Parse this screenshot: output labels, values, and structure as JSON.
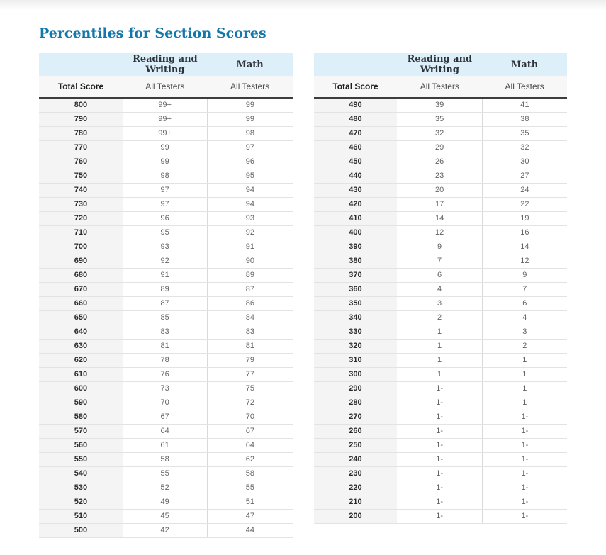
{
  "title": "Percentiles for Section Scores",
  "colors": {
    "title_blue": "#1478ab",
    "group_header_bg": "#ddeff9",
    "subheader_bg": "#f7f7f7",
    "score_column_bg": "#f4f4f4",
    "header_rule": "#3d3d3d",
    "row_divider": "#e3e3e3"
  },
  "tables": [
    {
      "group_headers": [
        "",
        "Reading and Writing",
        "Math"
      ],
      "column_headers": [
        "Total Score",
        "All Testers",
        "All Testers"
      ],
      "rows": [
        [
          "800",
          "99+",
          "99"
        ],
        [
          "790",
          "99+",
          "99"
        ],
        [
          "780",
          "99+",
          "98"
        ],
        [
          "770",
          "99",
          "97"
        ],
        [
          "760",
          "99",
          "96"
        ],
        [
          "750",
          "98",
          "95"
        ],
        [
          "740",
          "97",
          "94"
        ],
        [
          "730",
          "97",
          "94"
        ],
        [
          "720",
          "96",
          "93"
        ],
        [
          "710",
          "95",
          "92"
        ],
        [
          "700",
          "93",
          "91"
        ],
        [
          "690",
          "92",
          "90"
        ],
        [
          "680",
          "91",
          "89"
        ],
        [
          "670",
          "89",
          "87"
        ],
        [
          "660",
          "87",
          "86"
        ],
        [
          "650",
          "85",
          "84"
        ],
        [
          "640",
          "83",
          "83"
        ],
        [
          "630",
          "81",
          "81"
        ],
        [
          "620",
          "78",
          "79"
        ],
        [
          "610",
          "76",
          "77"
        ],
        [
          "600",
          "73",
          "75"
        ],
        [
          "590",
          "70",
          "72"
        ],
        [
          "580",
          "67",
          "70"
        ],
        [
          "570",
          "64",
          "67"
        ],
        [
          "560",
          "61",
          "64"
        ],
        [
          "550",
          "58",
          "62"
        ],
        [
          "540",
          "55",
          "58"
        ],
        [
          "530",
          "52",
          "55"
        ],
        [
          "520",
          "49",
          "51"
        ],
        [
          "510",
          "45",
          "47"
        ],
        [
          "500",
          "42",
          "44"
        ]
      ]
    },
    {
      "group_headers": [
        "",
        "Reading and Writing",
        "Math"
      ],
      "column_headers": [
        "Total Score",
        "All Testers",
        "All Testers"
      ],
      "rows": [
        [
          "490",
          "39",
          "41"
        ],
        [
          "480",
          "35",
          "38"
        ],
        [
          "470",
          "32",
          "35"
        ],
        [
          "460",
          "29",
          "32"
        ],
        [
          "450",
          "26",
          "30"
        ],
        [
          "440",
          "23",
          "27"
        ],
        [
          "430",
          "20",
          "24"
        ],
        [
          "420",
          "17",
          "22"
        ],
        [
          "410",
          "14",
          "19"
        ],
        [
          "400",
          "12",
          "16"
        ],
        [
          "390",
          "9",
          "14"
        ],
        [
          "380",
          "7",
          "12"
        ],
        [
          "370",
          "6",
          "9"
        ],
        [
          "360",
          "4",
          "7"
        ],
        [
          "350",
          "3",
          "6"
        ],
        [
          "340",
          "2",
          "4"
        ],
        [
          "330",
          "1",
          "3"
        ],
        [
          "320",
          "1",
          "2"
        ],
        [
          "310",
          "1",
          "1"
        ],
        [
          "300",
          "1",
          "1"
        ],
        [
          "290",
          "1-",
          "1"
        ],
        [
          "280",
          "1-",
          "1"
        ],
        [
          "270",
          "1-",
          "1-"
        ],
        [
          "260",
          "1-",
          "1-"
        ],
        [
          "250",
          "1-",
          "1-"
        ],
        [
          "240",
          "1-",
          "1-"
        ],
        [
          "230",
          "1-",
          "1-"
        ],
        [
          "220",
          "1-",
          "1-"
        ],
        [
          "210",
          "1-",
          "1-"
        ],
        [
          "200",
          "1-",
          "1-"
        ]
      ]
    }
  ]
}
